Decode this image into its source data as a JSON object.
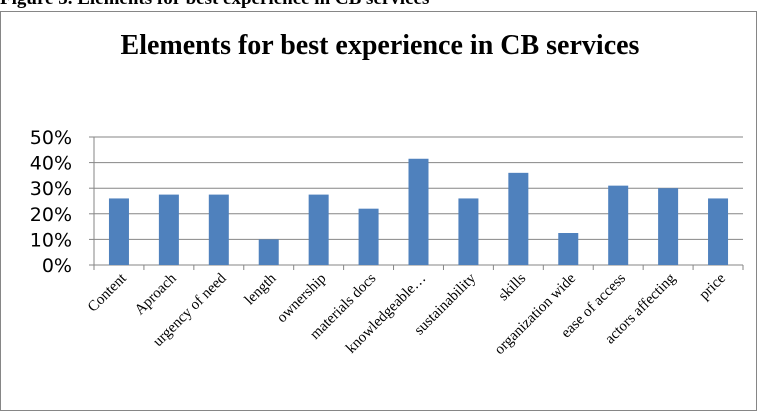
{
  "document": {
    "caption": "Figure 5. Elements for best experience in CB services"
  },
  "chart_data": {
    "type": "bar",
    "title": "Elements for best experience in CB services",
    "xlabel": "",
    "ylabel": "",
    "categories": [
      "Content",
      "Aproach",
      "urgency of need",
      "length",
      "ownership",
      "materials docs",
      "knowledgeable…",
      "sustainability",
      "skills",
      "organization wide",
      "ease of access",
      "actors affecting",
      "price"
    ],
    "series": [
      {
        "values": [
          0.26,
          0.275,
          0.275,
          0.1,
          0.275,
          0.22,
          0.415,
          0.26,
          0.36,
          0.125,
          0.31,
          0.3,
          0.26
        ]
      }
    ],
    "ylim": [
      0,
      0.5
    ],
    "yticks": [
      "0%",
      "10%",
      "20%",
      "30%",
      "40%",
      "50%"
    ],
    "grid": true,
    "legend": "none",
    "bar_color": "#4f81bd",
    "grid_color": "#868686"
  }
}
